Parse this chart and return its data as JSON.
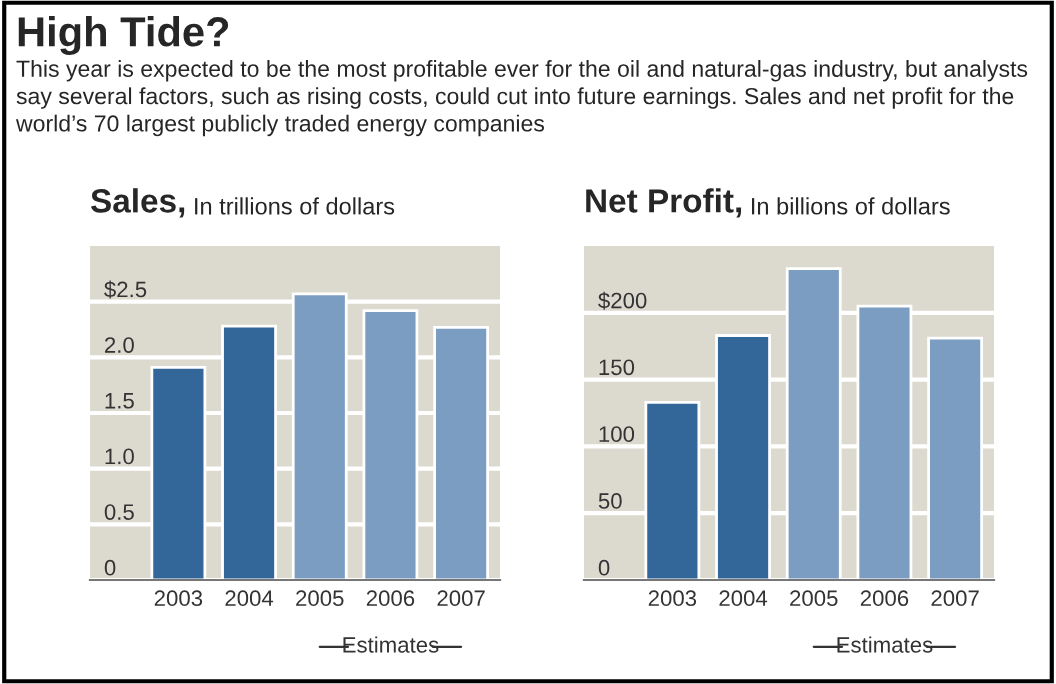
{
  "chart_data": [
    {
      "type": "other",
      "title": "High Tide?",
      "subtitle": "This year is expected to be the most profitable ever for the oil and natural-gas industry, but analysts say several factors, such as rising costs, could cut into future earnings. Sales and net profit for the world’s 70 largest publicly traded energy companies"
    },
    {
      "type": "bar",
      "title": "Sales,",
      "ylabel": "In trillions of dollars",
      "categories": [
        "2003",
        "2004",
        "2005",
        "2006",
        "2007"
      ],
      "values": [
        1.91,
        2.28,
        2.57,
        2.42,
        2.27
      ],
      "colors": [
        "#336699",
        "#336699",
        "#7b9dc2",
        "#7b9dc2",
        "#7b9dc2"
      ],
      "ylim": [
        0,
        3.0
      ],
      "yticks": [
        0,
        0.5,
        {
          "value": 1.0,
          "label": "1.0"
        },
        1.5,
        {
          "value": 2.0,
          "label": "2.0"
        },
        {
          "value": 2.5,
          "label": "$2.5"
        }
      ],
      "grid": "y",
      "annotations": [
        "Estimates"
      ]
    },
    {
      "type": "bar",
      "title": "Net Profit,",
      "ylabel": "In billions of dollars",
      "categories": [
        "2003",
        "2004",
        "2005",
        "2006",
        "2007"
      ],
      "values": [
        133,
        183,
        233,
        205,
        181
      ],
      "colors": [
        "#336699",
        "#336699",
        "#7b9dc2",
        "#7b9dc2",
        "#7b9dc2"
      ],
      "ylim": [
        0,
        250
      ],
      "yticks": [
        0,
        50,
        100,
        150,
        {
          "value": 200,
          "label": "$200"
        }
      ],
      "grid": "y",
      "annotations": [
        "Estimates"
      ]
    }
  ]
}
